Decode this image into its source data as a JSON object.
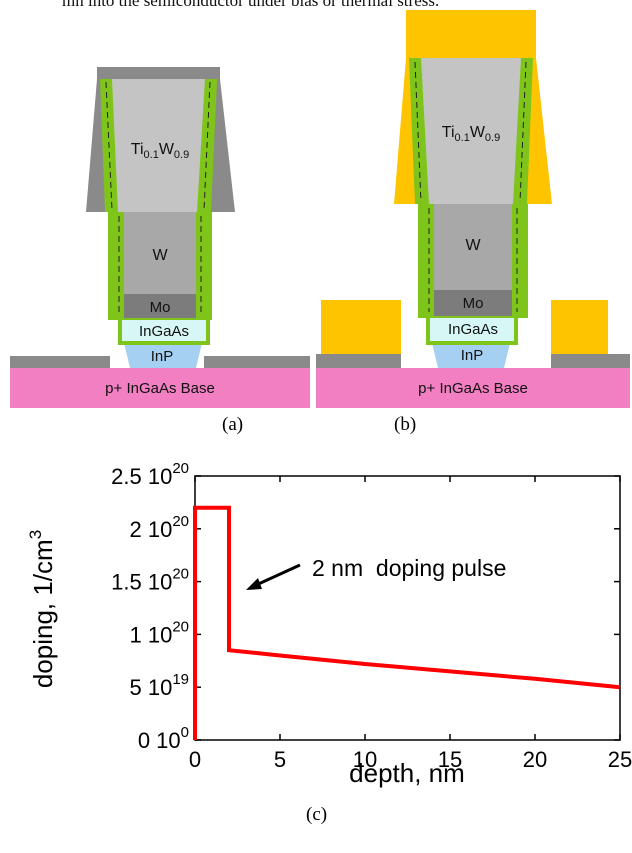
{
  "top_text": "mn into the semiconductor under bias or thermal stress.",
  "diagram_a": {
    "caption": "(a)",
    "layers": {
      "tiw_base": "Ti",
      "tiw_sub1": "0.1",
      "tiw_mid": "W",
      "tiw_sub2": "0.9",
      "w": "W",
      "mo": "Mo",
      "ingaas": "InGaAs",
      "inp": "InP",
      "base": "p+ InGaAs Base"
    }
  },
  "diagram_b": {
    "caption": "(b)",
    "layers": {
      "tiw_base": "Ti",
      "tiw_sub1": "0.1",
      "tiw_mid": "W",
      "tiw_sub2": "0.9",
      "w": "W",
      "mo": "Mo",
      "ingaas": "InGaAs",
      "inp": "InP",
      "base": "p+ InGaAs Base"
    }
  },
  "chart_caption": "(c)",
  "colors": {
    "metal_contact": "#ffc400",
    "liner": "#7fc41a",
    "tiw": "#c4c4c4",
    "w": "#a8a8a8",
    "mo": "#7c7c7c",
    "ingaas": "#d7f7f7",
    "inp": "#a6d0f2",
    "base": "#f27fc2",
    "dielectric": "#8a8a8a",
    "curve": "#ff0000"
  },
  "chart_data": {
    "type": "line",
    "xlabel": "depth, nm",
    "ylabel_main": "doping, 1/cm",
    "ylabel_sup": "3",
    "xlim": [
      0,
      25
    ],
    "ylim": [
      0,
      2.5e+20
    ],
    "x_ticks": [
      "0",
      "5",
      "10",
      "15",
      "20",
      "25"
    ],
    "x_tick_values": [
      0,
      5,
      10,
      15,
      20,
      25
    ],
    "y_ticks": [
      {
        "value": 0,
        "mant": "0 10",
        "exp": "0"
      },
      {
        "value": 5e+19,
        "mant": "5 10",
        "exp": "19"
      },
      {
        "value": 1e+20,
        "mant": "1 10",
        "exp": "20"
      },
      {
        "value": 1.5e+20,
        "mant": "1.5 10",
        "exp": "20"
      },
      {
        "value": 2e+20,
        "mant": "2 10",
        "exp": "20"
      },
      {
        "value": 2.5e+20,
        "mant": "2.5 10",
        "exp": "20"
      }
    ],
    "series": [
      {
        "x": [
          0,
          0,
          2,
          2,
          5,
          10,
          15,
          20,
          25
        ],
        "y": [
          0,
          2.2e+20,
          2.2e+20,
          8.5e+19,
          8e+19,
          7.2e+19,
          6.5e+19,
          5.8e+19,
          5e+19
        ]
      }
    ],
    "annotation": "2 nm  doping pulse",
    "grid": false
  }
}
